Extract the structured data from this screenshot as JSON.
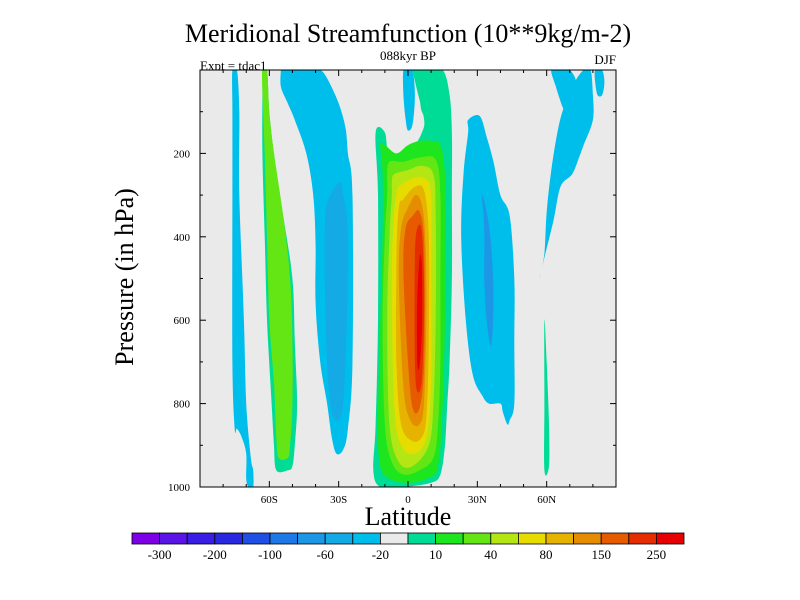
{
  "chart_data": {
    "type": "contour",
    "title": "Meridional Streamfunction (10**9kg/m-2)",
    "subtitle": "088kyr BP",
    "left_label": "Expt = tdac1",
    "right_label": "DJF",
    "xlabel": "Latitude",
    "ylabel": "Pressure (in hPa)",
    "xlim": [
      -90,
      90
    ],
    "ylim": [
      1000,
      0
    ],
    "x_ticks": [
      {
        "value": -60,
        "label": "60S"
      },
      {
        "value": -30,
        "label": "30S"
      },
      {
        "value": 0,
        "label": "0"
      },
      {
        "value": 30,
        "label": "30N"
      },
      {
        "value": 60,
        "label": "60N"
      }
    ],
    "y_ticks": [
      {
        "value": 200,
        "label": "200"
      },
      {
        "value": 400,
        "label": "400"
      },
      {
        "value": 600,
        "label": "600"
      },
      {
        "value": 800,
        "label": "800"
      },
      {
        "value": 1000,
        "label": "1000"
      }
    ],
    "colorbar": {
      "colors": [
        "#7d00e6",
        "#5a14e6",
        "#3a1ee6",
        "#2828e1",
        "#1e50e6",
        "#1e78e6",
        "#1e96e6",
        "#14aae6",
        "#00beeb",
        "#eaeaea",
        "#00dc96",
        "#1ee61e",
        "#64e614",
        "#b4e614",
        "#e6dc00",
        "#e6b400",
        "#e68c00",
        "#e65a00",
        "#e62d00",
        "#e60000"
      ],
      "labels": [
        {
          "after": 0,
          "text": "-300"
        },
        {
          "after": 2,
          "text": "-200"
        },
        {
          "after": 4,
          "text": "-100"
        },
        {
          "after": 6,
          "text": "-60"
        },
        {
          "after": 8,
          "text": "-20"
        },
        {
          "after": 10,
          "text": "10"
        },
        {
          "after": 12,
          "text": "40"
        },
        {
          "after": 14,
          "text": "80"
        },
        {
          "after": 16,
          "text": "150"
        },
        {
          "after": 18,
          "text": "250"
        }
      ]
    },
    "fields": [
      {
        "name": "sh-polar-cell",
        "level": -20,
        "lat": [
          -76,
          -74,
          -73,
          -73,
          -71,
          -70,
          -68,
          -67,
          -67,
          -69,
          -70,
          -70,
          -72,
          -74,
          -75,
          -76,
          -76,
          -76
        ],
        "p": [
          0,
          0,
          100,
          300,
          600,
          800,
          930,
          960,
          1000,
          1000,
          980,
          920,
          880,
          860,
          860,
          700,
          300,
          100
        ]
      },
      {
        "name": "sh-ferrel-outer",
        "level": 10,
        "lat": [
          -63,
          -61,
          -60,
          -58,
          -54,
          -50,
          -49,
          -48,
          -49,
          -50,
          -52,
          -57,
          -58,
          -59,
          -61,
          -62,
          -63,
          -63
        ],
        "p": [
          0,
          0,
          100,
          200,
          350,
          500,
          650,
          800,
          900,
          950,
          960,
          960,
          900,
          800,
          600,
          400,
          200,
          50
        ]
      },
      {
        "name": "sh-ferrel-inner",
        "level": 40,
        "lat": [
          -63,
          -61,
          -60,
          -58,
          -54,
          -51,
          -50,
          -50,
          -51,
          -52,
          -56,
          -57,
          -58,
          -60,
          -61,
          -62,
          -63
        ],
        "p": [
          0,
          0,
          100,
          200,
          350,
          500,
          650,
          800,
          900,
          930,
          930,
          880,
          750,
          600,
          400,
          200,
          50
        ]
      },
      {
        "name": "sh-mid-lobe",
        "level": -20,
        "lat": [
          -55,
          -52,
          -48,
          -45,
          -42,
          -38,
          -35,
          -30,
          -27,
          -26,
          -24,
          -24,
          -26,
          -28,
          -31,
          -33,
          -35,
          -38,
          -40,
          -40,
          -41,
          -44,
          -49,
          -52,
          -55,
          -55
        ],
        "p": [
          0,
          0,
          0,
          0,
          0,
          0,
          20,
          80,
          140,
          200,
          300,
          700,
          860,
          910,
          920,
          880,
          800,
          700,
          560,
          420,
          300,
          200,
          120,
          80,
          40,
          0
        ]
      },
      {
        "name": "sh-mid-core",
        "level": -60,
        "lat": [
          -35,
          -30,
          -28,
          -26,
          -27,
          -29,
          -33,
          -35,
          -36,
          -36
        ],
        "p": [
          320,
          270,
          300,
          400,
          700,
          830,
          820,
          700,
          500,
          380
        ]
      },
      {
        "name": "hadley-10",
        "level": 10,
        "lat": [
          -8,
          -1,
          3,
          6,
          7,
          4,
          2,
          3,
          8,
          15,
          18,
          19,
          19,
          19,
          18,
          17,
          16,
          14,
          10,
          -2,
          -12,
          -15,
          -14,
          -13,
          -13,
          -14,
          -10
        ],
        "p": [
          210,
          200,
          180,
          150,
          120,
          50,
          0,
          0,
          0,
          0,
          60,
          150,
          300,
          500,
          700,
          800,
          900,
          970,
          990,
          1000,
          1000,
          960,
          850,
          600,
          300,
          150,
          150
        ]
      },
      {
        "name": "hadley-20",
        "level": 20,
        "lat": [
          -10,
          -5,
          0,
          5,
          10,
          14,
          16,
          16,
          16,
          15,
          13,
          8,
          0,
          -8,
          -12,
          -13,
          -12,
          -11,
          -11,
          -12
        ],
        "p": [
          180,
          200,
          180,
          170,
          170,
          180,
          250,
          400,
          600,
          800,
          950,
          980,
          990,
          980,
          950,
          850,
          600,
          400,
          250,
          180
        ]
      },
      {
        "name": "hadley-40",
        "level": 40,
        "lat": [
          -8,
          -2,
          5,
          12,
          14,
          14,
          14,
          13,
          11,
          5,
          -2,
          -7,
          -10,
          -11,
          -10,
          -9,
          -9
        ],
        "p": [
          220,
          220,
          210,
          215,
          300,
          500,
          700,
          850,
          930,
          960,
          970,
          940,
          850,
          600,
          400,
          300,
          250
        ]
      },
      {
        "name": "hadley-60",
        "level": 60,
        "lat": [
          -6,
          0,
          6,
          11,
          12,
          12,
          11,
          9,
          2,
          -4,
          -8,
          -9,
          -8,
          -7,
          -7
        ],
        "p": [
          250,
          240,
          230,
          250,
          350,
          600,
          800,
          900,
          950,
          940,
          850,
          600,
          400,
          300,
          270
        ]
      },
      {
        "name": "hadley-80",
        "level": 80,
        "lat": [
          -4,
          2,
          7,
          10,
          10,
          10,
          8,
          3,
          -3,
          -6,
          -7,
          -6,
          -5
        ],
        "p": [
          280,
          260,
          260,
          300,
          500,
          750,
          880,
          920,
          900,
          800,
          500,
          350,
          300
        ]
      },
      {
        "name": "hadley-100",
        "level": 100,
        "lat": [
          -2,
          3,
          7,
          9,
          9,
          8,
          6,
          2,
          -3,
          -5,
          -5,
          -4
        ],
        "p": [
          310,
          280,
          290,
          400,
          650,
          830,
          880,
          890,
          850,
          700,
          450,
          330
        ]
      },
      {
        "name": "hadley-150",
        "level": 150,
        "lat": [
          0,
          4,
          7,
          8,
          7,
          5,
          1,
          -2,
          -4,
          -3
        ],
        "p": [
          330,
          300,
          360,
          550,
          790,
          850,
          840,
          760,
          500,
          380
        ]
      },
      {
        "name": "hadley-200",
        "level": 200,
        "lat": [
          2,
          5,
          7,
          7,
          5,
          2,
          0,
          -2,
          -1
        ],
        "p": [
          350,
          340,
          420,
          700,
          810,
          810,
          700,
          480,
          380
        ]
      },
      {
        "name": "hadley-250",
        "level": 250,
        "lat": [
          4,
          6,
          7,
          6,
          4,
          3,
          3
        ],
        "p": [
          380,
          390,
          550,
          740,
          770,
          700,
          450
        ]
      },
      {
        "name": "hadley-300",
        "level": 300,
        "lat": [
          5,
          6,
          6,
          5,
          4,
          4
        ],
        "p": [
          450,
          470,
          620,
          710,
          700,
          560
        ]
      },
      {
        "name": "nh-polar-lobe",
        "level": -20,
        "lat": [
          26,
          31,
          34,
          37,
          40,
          44,
          46,
          46,
          46,
          44,
          43,
          41,
          40,
          35,
          32,
          28,
          25,
          23,
          24,
          26
        ],
        "p": [
          120,
          110,
          160,
          220,
          300,
          350,
          500,
          650,
          800,
          840,
          850,
          820,
          800,
          800,
          780,
          730,
          600,
          400,
          250,
          150
        ]
      },
      {
        "name": "nh-polar-core",
        "level": -40,
        "lat": [
          32,
          34,
          36,
          37,
          36,
          34,
          33,
          33
        ],
        "p": [
          300,
          340,
          420,
          550,
          660,
          600,
          500,
          380
        ]
      },
      {
        "name": "nh-30n-strip",
        "level": 10,
        "lat": [
          59,
          60,
          61,
          61,
          59,
          59
        ],
        "p": [
          600,
          700,
          850,
          950,
          960,
          800
        ]
      },
      {
        "name": "nh-high-lat",
        "level": -20,
        "lat": [
          57,
          59,
          63,
          66,
          71,
          74,
          76,
          80,
          80,
          79,
          76,
          72,
          68,
          65,
          62,
          60,
          59
        ],
        "p": [
          500,
          450,
          360,
          280,
          250,
          210,
          180,
          120,
          60,
          0,
          0,
          30,
          80,
          140,
          240,
          340,
          440
        ]
      },
      {
        "name": "sh-top-drip",
        "level": -20,
        "lat": [
          -2,
          0,
          2,
          3,
          2,
          0,
          -1,
          -2
        ],
        "p": [
          0,
          0,
          0,
          60,
          130,
          145,
          120,
          60
        ]
      },
      {
        "name": "sh-top-drip-2",
        "level": 10,
        "lat": [
          4,
          8,
          14,
          16,
          16,
          15,
          12,
          9,
          6,
          5
        ],
        "p": [
          0,
          0,
          0,
          60,
          120,
          140,
          140,
          120,
          100,
          60
        ]
      },
      {
        "name": "nh-top-drip",
        "level": -20,
        "lat": [
          62,
          66,
          70,
          73,
          74,
          72,
          70,
          67,
          64
        ],
        "p": [
          0,
          0,
          0,
          30,
          80,
          110,
          120,
          90,
          40
        ]
      },
      {
        "name": "nh-top-drip-2",
        "level": -20,
        "lat": [
          81,
          84,
          85,
          84,
          82,
          81
        ],
        "p": [
          0,
          0,
          30,
          60,
          60,
          30
        ]
      }
    ]
  }
}
